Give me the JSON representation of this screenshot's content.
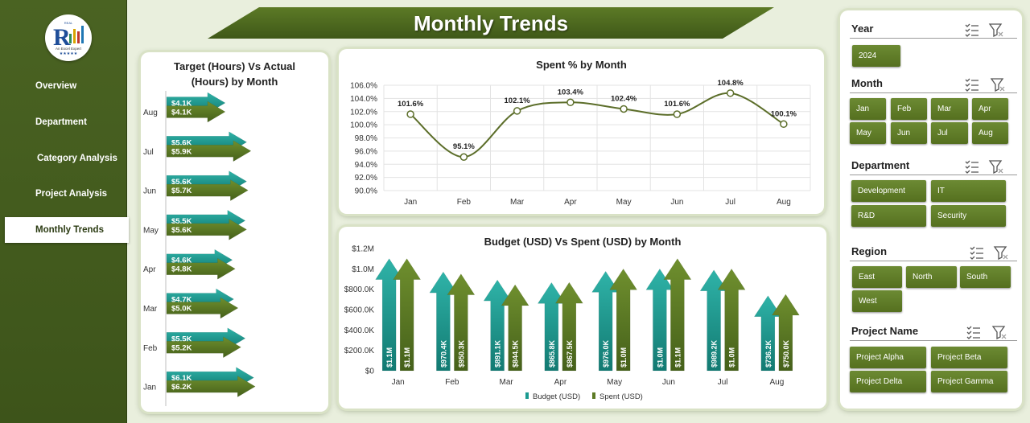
{
  "title": "Monthly Trends",
  "logo": {
    "badge": "REAL",
    "tagline": "An Excel Expert",
    "stars": "★★★★★"
  },
  "nav": [
    {
      "label": "Overview",
      "active": false
    },
    {
      "label": "Department",
      "active": false
    },
    {
      "label": "Category Analysis",
      "active": false
    },
    {
      "label": "Project Analysis",
      "active": false
    },
    {
      "label": "Monthly Trends",
      "active": true
    }
  ],
  "colors": {
    "sidebar": "#4a6322",
    "teal": "#1a9a90",
    "olive": "#5c7a24",
    "button": "#5f7d28"
  },
  "charts": {
    "hours": {
      "title_line1": "Target (Hours) Vs Actual",
      "title_line2": "(Hours) by Month"
    },
    "spent_pct": {
      "title": "Spent % by Month"
    },
    "budget": {
      "title": "Budget (USD) Vs Spent (USD) by Month",
      "legend_budget": "Budget (USD)",
      "legend_spent": "Spent (USD)"
    }
  },
  "chart_data": [
    {
      "type": "bar",
      "orientation": "horizontal",
      "title": "Target (Hours) Vs Actual (Hours) by Month",
      "categories": [
        "Aug",
        "Jul",
        "Jun",
        "May",
        "Apr",
        "Mar",
        "Feb",
        "Jan"
      ],
      "series": [
        {
          "name": "Target (Hours)",
          "values": [
            4100,
            5600,
            5600,
            5500,
            4600,
            4700,
            5500,
            6100
          ],
          "labels": [
            "$4.1K",
            "$5.6K",
            "$5.6K",
            "$5.5K",
            "$4.6K",
            "$4.7K",
            "$5.5K",
            "$6.1K"
          ]
        },
        {
          "name": "Actual (Hours)",
          "values": [
            4100,
            5900,
            5700,
            5600,
            4800,
            5000,
            5200,
            6200
          ],
          "labels": [
            "$4.1K",
            "$5.9K",
            "$5.7K",
            "$5.6K",
            "$4.8K",
            "$5.0K",
            "$5.2K",
            "$6.2K"
          ]
        }
      ],
      "xlim": [
        0,
        9000
      ]
    },
    {
      "type": "line",
      "title": "Spent % by Month",
      "categories": [
        "Jan",
        "Feb",
        "Mar",
        "Apr",
        "May",
        "Jun",
        "Jul",
        "Aug"
      ],
      "values": [
        101.6,
        95.1,
        102.1,
        103.4,
        102.4,
        101.6,
        104.8,
        100.1
      ],
      "labels": [
        "101.6%",
        "95.1%",
        "102.1%",
        "103.4%",
        "102.4%",
        "101.6%",
        "104.8%",
        "100.1%"
      ],
      "yticks": [
        "106.0%",
        "104.0%",
        "102.0%",
        "100.0%",
        "98.0%",
        "96.0%",
        "94.0%",
        "92.0%",
        "90.0%"
      ],
      "ylim": [
        90,
        106
      ],
      "grid": true
    },
    {
      "type": "bar",
      "title": "Budget (USD) Vs Spent (USD) by Month",
      "categories": [
        "Jan",
        "Feb",
        "Mar",
        "Apr",
        "May",
        "Jun",
        "Jul",
        "Aug"
      ],
      "series": [
        {
          "name": "Budget (USD)",
          "values": [
            1100000,
            970400,
            891100,
            865800,
            976000,
            1000000,
            989200,
            736200
          ],
          "labels": [
            "$1.1M",
            "$970.4K",
            "$891.1K",
            "$865.8K",
            "$976.0K",
            "$1.0M",
            "$989.2K",
            "$736.2K"
          ]
        },
        {
          "name": "Spent (USD)",
          "values": [
            1100000,
            950300,
            844500,
            867500,
            1000000,
            1100000,
            1000000,
            750000
          ],
          "labels": [
            "$1.1M",
            "$950.3K",
            "$844.5K",
            "$867.5K",
            "$1.0M",
            "$1.1M",
            "$1.0M",
            "$750.0K"
          ]
        }
      ],
      "yticks": [
        "$1.2M",
        "$1.0M",
        "$800.0K",
        "$600.0K",
        "$400.0K",
        "$200.0K",
        "$0"
      ],
      "ylim": [
        0,
        1200000
      ],
      "legend": "bottom"
    }
  ],
  "slicers": {
    "year": {
      "label": "Year",
      "items": [
        "2024"
      ]
    },
    "month": {
      "label": "Month",
      "items": [
        "Jan",
        "Feb",
        "Mar",
        "Apr",
        "May",
        "Jun",
        "Jul",
        "Aug"
      ]
    },
    "department": {
      "label": "Department",
      "items": [
        "Development",
        "IT",
        "R&D",
        "Security"
      ]
    },
    "region": {
      "label": "Region",
      "items": [
        "East",
        "North",
        "South",
        "West"
      ]
    },
    "project": {
      "label": "Project Name",
      "items": [
        "Project Alpha",
        "Project Beta",
        "Project Delta",
        "Project Gamma"
      ]
    }
  }
}
